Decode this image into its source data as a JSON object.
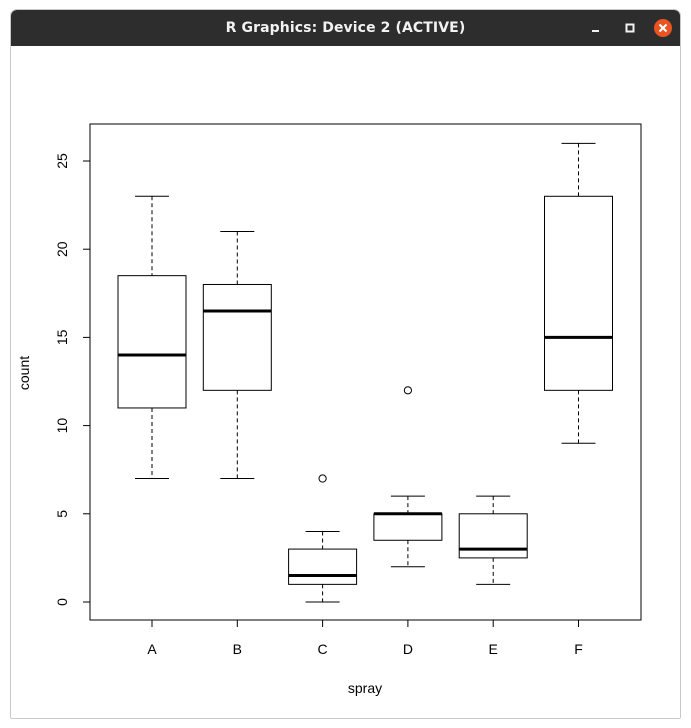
{
  "window": {
    "title": "R Graphics: Device 2 (ACTIVE)",
    "minimize_icon": "minimize-icon",
    "maximize_icon": "maximize-icon",
    "close_icon": "close-icon",
    "close_color": "#e95420"
  },
  "chart_data": {
    "type": "boxplot",
    "title": "",
    "xlabel": "spray",
    "ylabel": "count",
    "ylim": [
      -1,
      27
    ],
    "yticks": [
      0,
      5,
      10,
      15,
      20,
      25
    ],
    "grid": false,
    "categories": [
      "A",
      "B",
      "C",
      "D",
      "E",
      "F"
    ],
    "boxes": [
      {
        "category": "A",
        "whisker_low": 7,
        "q1": 11,
        "median": 14,
        "q3": 18.5,
        "whisker_high": 23,
        "outliers": []
      },
      {
        "category": "B",
        "whisker_low": 7,
        "q1": 12,
        "median": 16.5,
        "q3": 18,
        "whisker_high": 21,
        "outliers": []
      },
      {
        "category": "C",
        "whisker_low": 0,
        "q1": 1,
        "median": 1.5,
        "q3": 3,
        "whisker_high": 4,
        "outliers": [
          7
        ]
      },
      {
        "category": "D",
        "whisker_low": 2,
        "q1": 3.5,
        "median": 5,
        "q3": 5,
        "whisker_high": 6,
        "outliers": [
          12
        ]
      },
      {
        "category": "E",
        "whisker_low": 1,
        "q1": 2.5,
        "median": 3,
        "q3": 5,
        "whisker_high": 6,
        "outliers": []
      },
      {
        "category": "F",
        "whisker_low": 9,
        "q1": 12,
        "median": 15,
        "q3": 23,
        "whisker_high": 26,
        "outliers": []
      }
    ]
  }
}
